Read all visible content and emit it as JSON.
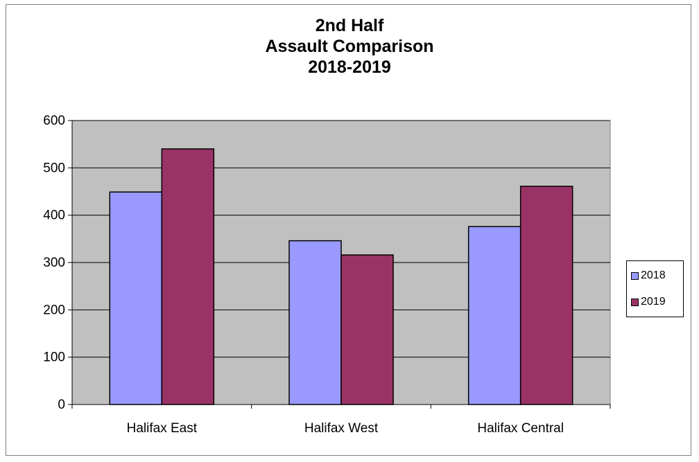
{
  "chart_data": {
    "type": "bar",
    "title": [
      "2nd Half",
      "Assault Comparison",
      "2018-2019"
    ],
    "categories": [
      "Halifax East",
      "Halifax West",
      "Halifax Central"
    ],
    "series": [
      {
        "name": "2018",
        "values": [
          449,
          346,
          376
        ],
        "color": "#9999ff"
      },
      {
        "name": "2019",
        "values": [
          540,
          316,
          461
        ],
        "color": "#993366"
      }
    ],
    "ylim": [
      0,
      600
    ],
    "yticks": [
      0,
      100,
      200,
      300,
      400,
      500,
      600
    ],
    "yticks_labels": [
      "0",
      "100",
      "200",
      "300",
      "400",
      "500",
      "600"
    ],
    "grid": true,
    "plot_background": "#c0c0c0",
    "legend_position": "right"
  }
}
